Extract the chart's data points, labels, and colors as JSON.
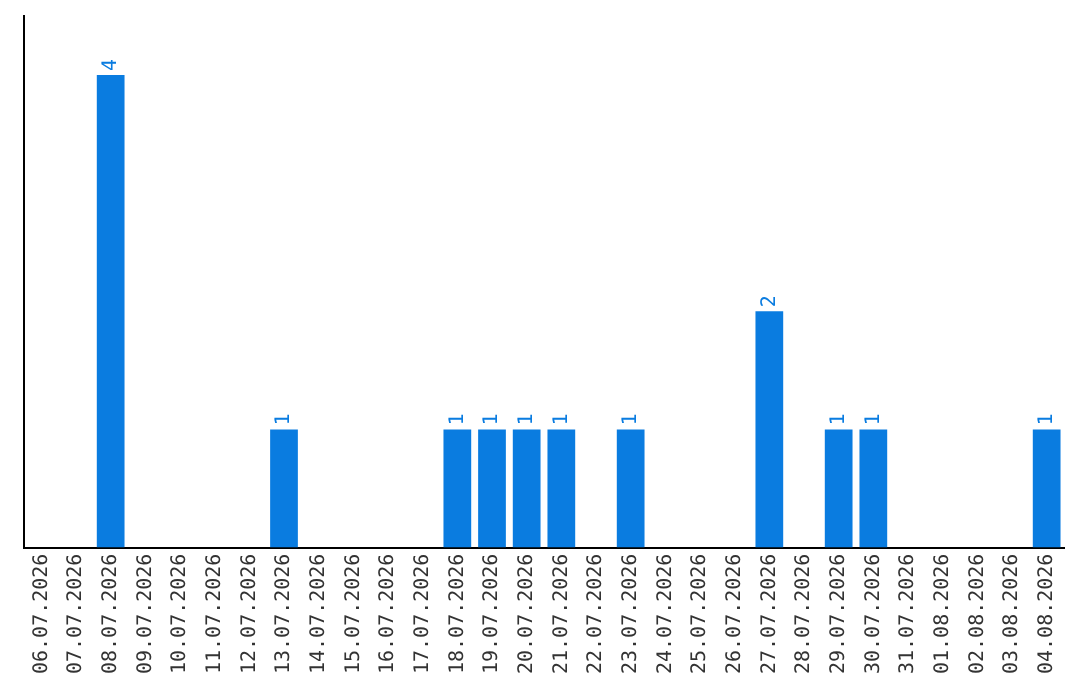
{
  "chart_data": {
    "type": "bar",
    "categories": [
      "06.07.2026",
      "07.07.2026",
      "08.07.2026",
      "09.07.2026",
      "10.07.2026",
      "11.07.2026",
      "12.07.2026",
      "13.07.2026",
      "14.07.2026",
      "15.07.2026",
      "16.07.2026",
      "17.07.2026",
      "18.07.2026",
      "19.07.2026",
      "20.07.2026",
      "21.07.2026",
      "22.07.2026",
      "23.07.2026",
      "24.07.2026",
      "25.07.2026",
      "26.07.2026",
      "27.07.2026",
      "28.07.2026",
      "29.07.2026",
      "30.07.2026",
      "31.07.2026",
      "01.08.2026",
      "02.08.2026",
      "03.08.2026",
      "04.08.2026"
    ],
    "values": [
      0,
      0,
      4,
      0,
      0,
      0,
      0,
      1,
      0,
      0,
      0,
      0,
      1,
      1,
      1,
      1,
      0,
      1,
      0,
      0,
      0,
      2,
      0,
      1,
      1,
      0,
      0,
      0,
      0,
      1
    ],
    "value_labels": [
      null,
      null,
      "4",
      null,
      null,
      null,
      null,
      "1",
      null,
      null,
      null,
      null,
      "1",
      "1",
      "1",
      "1",
      null,
      "1",
      null,
      null,
      null,
      "2",
      null,
      "1",
      "1",
      null,
      null,
      null,
      null,
      "1"
    ],
    "color": "#0a7ce0",
    "grid": false,
    "legend": false
  }
}
